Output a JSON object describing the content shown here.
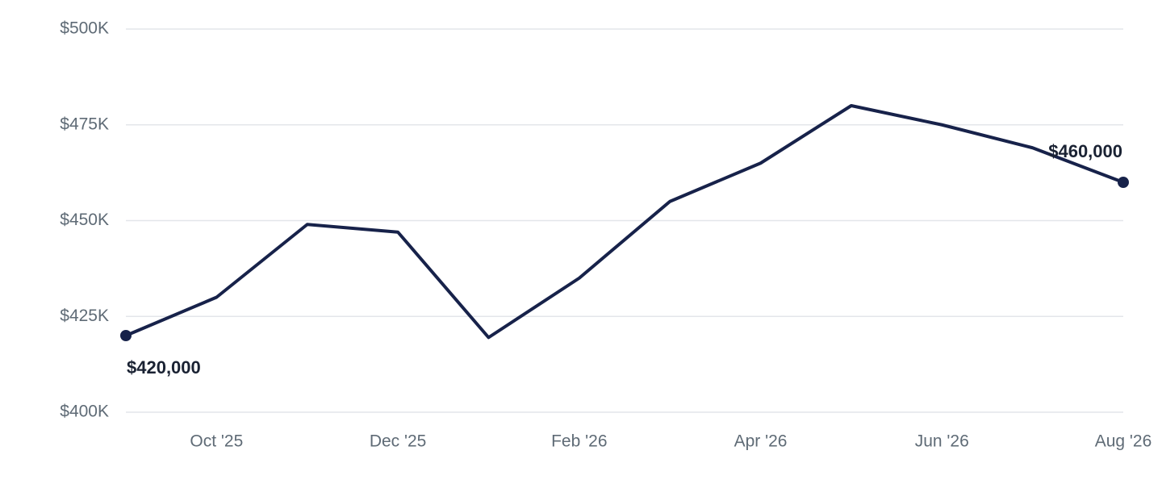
{
  "chart_data": {
    "type": "line",
    "categories": [
      null,
      "Oct '25",
      null,
      "Dec '25",
      null,
      "Feb '26",
      null,
      "Apr '26",
      null,
      "Jun '26",
      null,
      "Aug '26"
    ],
    "values": [
      420000,
      430000,
      449000,
      447000,
      419500,
      435000,
      455000,
      465000,
      480000,
      475000,
      469000,
      460000
    ],
    "value_labels": [
      "$420,000",
      null,
      null,
      null,
      null,
      null,
      null,
      null,
      null,
      null,
      null,
      "$460,000"
    ],
    "color": "#17224a",
    "ylim": [
      400000,
      500000
    ],
    "yticks": [
      {
        "value": 400000,
        "label": "$400K"
      },
      {
        "value": 425000,
        "label": "$425K"
      },
      {
        "value": 450000,
        "label": "$450K"
      },
      {
        "value": 475000,
        "label": "$475K"
      },
      {
        "value": 500000,
        "label": "$500K"
      }
    ],
    "grid": true
  }
}
